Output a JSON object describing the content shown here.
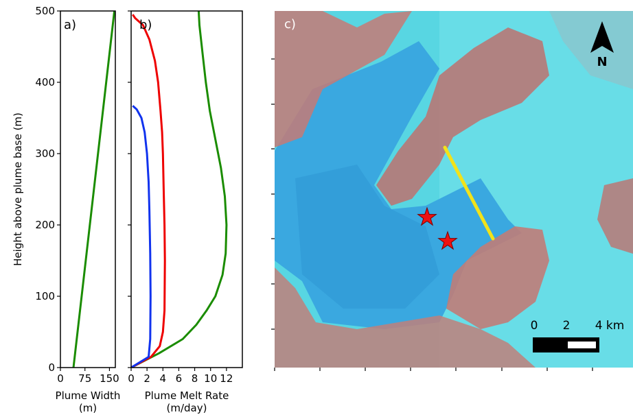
{
  "chart_data": [
    {
      "panel": "a)",
      "type": "line",
      "xlabel": "Plume Width\n(m)",
      "ylabel": "Height above plume base (m)",
      "xlim": [
        0,
        168
      ],
      "ylim": [
        0,
        500
      ],
      "xticks": [
        0,
        75,
        150
      ],
      "xtick_labels": [
        "0",
        "75",
        "150"
      ],
      "yticks": [
        0,
        100,
        200,
        300,
        400,
        500
      ],
      "ytick_labels": [
        "0",
        "100",
        "200",
        "300",
        "400",
        "500"
      ],
      "series": [
        {
          "color": "#1a8c00",
          "x": [
            40,
            165
          ],
          "y": [
            0,
            500
          ]
        }
      ]
    },
    {
      "panel": "b)",
      "type": "line",
      "xlabel": "Plume Melt Rate\n(m/day)",
      "xlim": [
        0,
        14
      ],
      "ylim": [
        0,
        500
      ],
      "xticks": [
        0,
        2,
        4,
        6,
        8,
        10,
        12
      ],
      "xtick_labels": [
        "0",
        "2",
        "4",
        "6",
        "8",
        "10",
        "12"
      ],
      "series": [
        {
          "color": "#1a8c00",
          "x": [
            0,
            3.5,
            6.5,
            8.2,
            9.5,
            10.6,
            11.5,
            11.9,
            12.0,
            11.8,
            11.3,
            10.6,
            9.9,
            9.4,
            9.0,
            8.6,
            8.5
          ],
          "y": [
            0,
            20,
            40,
            60,
            80,
            100,
            130,
            160,
            200,
            240,
            280,
            320,
            360,
            400,
            440,
            480,
            500
          ]
        },
        {
          "color": "#ee0000",
          "x": [
            0,
            2.5,
            3.6,
            4.0,
            4.2,
            4.25,
            4.2,
            4.1,
            4.0,
            3.9,
            3.7,
            3.4,
            3.0,
            2.3,
            1.5,
            0.5,
            0.2
          ],
          "y": [
            0,
            15,
            30,
            50,
            80,
            150,
            200,
            250,
            300,
            330,
            360,
            400,
            430,
            460,
            480,
            490,
            495
          ]
        },
        {
          "color": "#1133ee",
          "x": [
            0,
            2.2,
            2.4,
            2.45,
            2.4,
            2.3,
            2.2,
            2.0,
            1.7,
            1.3,
            0.7,
            0.2
          ],
          "y": [
            0,
            15,
            40,
            100,
            160,
            220,
            260,
            300,
            330,
            350,
            362,
            367
          ]
        }
      ]
    },
    {
      "panel": "c)",
      "type": "map-image",
      "north_label": "N",
      "scale_labels": [
        "0",
        "2",
        "4 km"
      ]
    }
  ]
}
